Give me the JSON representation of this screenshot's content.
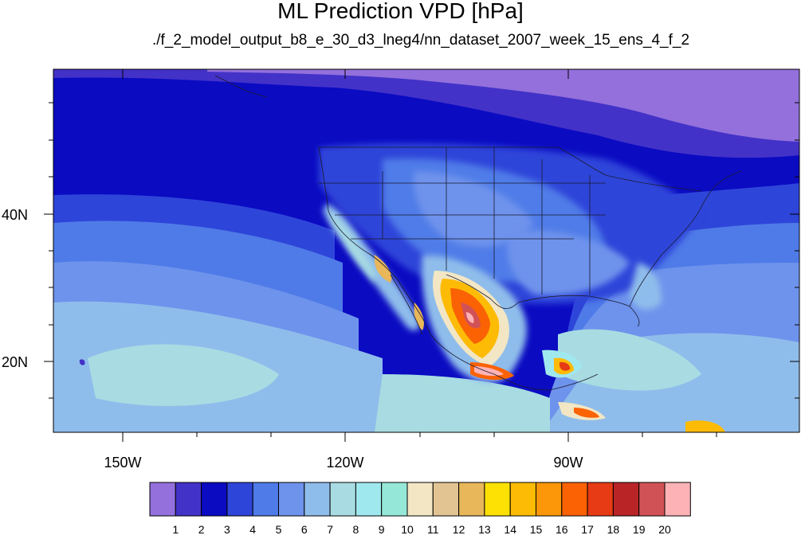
{
  "header": {
    "title": "ML Prediction VPD [hPa]",
    "subtitle": "./f_2_model_output_b8_e_30_d3_lneg4/nn_dataset_2007_week_15_ens_4_f_2"
  },
  "axes": {
    "lat_labels": [
      "40N",
      "20N"
    ],
    "lon_labels": [
      "150W",
      "120W",
      "90W"
    ]
  },
  "colorbar": {
    "labels": [
      "1",
      "2",
      "3",
      "4",
      "5",
      "6",
      "7",
      "8",
      "9",
      "10",
      "11",
      "12",
      "13",
      "14",
      "15",
      "16",
      "17",
      "18",
      "19",
      "20"
    ],
    "colors": [
      "#9370db",
      "#4332c8",
      "#0b0bc2",
      "#2e45d9",
      "#4f7be8",
      "#6e93ec",
      "#8fbdeb",
      "#a8dce2",
      "#9fe8ee",
      "#95e8d7",
      "#f2e6c4",
      "#e2c493",
      "#e8b75a",
      "#fde004",
      "#fdbb05",
      "#fb9709",
      "#fa6204",
      "#e63b14",
      "#b92427",
      "#d15256",
      "#fdb3b6"
    ]
  },
  "colors": {
    "coast": "#1a1a2e",
    "background": "#ffffff"
  }
}
